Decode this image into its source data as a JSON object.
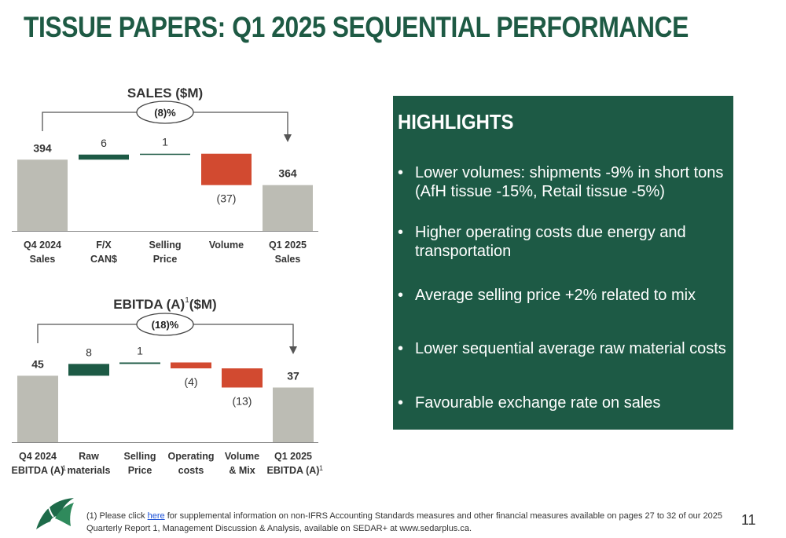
{
  "page": {
    "title": "TISSUE PAPERS: Q1 2025 SEQUENTIAL PERFORMANCE",
    "page_number": "11"
  },
  "colors": {
    "brand_green": "#1e5a44",
    "highlight_bg": "#1d5a45",
    "total_bar": "#bcbcb4",
    "increase_bar": "#1d5a45",
    "decrease_bar": "#d24a30"
  },
  "chart_data": [
    {
      "type": "bar",
      "subtype": "waterfall",
      "title": "SALES ($M)",
      "change_label": "(8)%",
      "categories": [
        [
          "Q4 2024",
          "Sales"
        ],
        [
          "F/X",
          "CAN$"
        ],
        [
          "Selling",
          "Price"
        ],
        [
          "Volume"
        ],
        [
          "Q1 2025",
          "Sales"
        ]
      ],
      "values": [
        394,
        6,
        1,
        -37,
        364
      ],
      "value_labels": [
        "394",
        "6",
        "1",
        "(37)",
        "364"
      ],
      "kinds": [
        "total",
        "delta",
        "delta",
        "delta",
        "total"
      ]
    },
    {
      "type": "bar",
      "subtype": "waterfall",
      "title": "EBITDA (A)",
      "title_sup": "1",
      "title_unit": "($M)",
      "change_label": "(18)%",
      "categories": [
        [
          "Q4 2024",
          "EBITDA (A)"
        ],
        [
          "Raw",
          "materials"
        ],
        [
          "Selling",
          "Price"
        ],
        [
          "Operating",
          "costs"
        ],
        [
          "Volume",
          "& Mix"
        ],
        [
          "Q1 2025",
          "EBITDA (A)"
        ]
      ],
      "category_sups": [
        "1",
        "",
        "",
        "",
        "",
        "1"
      ],
      "values": [
        45,
        8,
        1,
        -4,
        -13,
        37
      ],
      "value_labels": [
        "45",
        "8",
        "1",
        "(4)",
        "(13)",
        "37"
      ],
      "kinds": [
        "total",
        "delta",
        "delta",
        "delta",
        "delta",
        "total"
      ]
    }
  ],
  "highlights": {
    "title": "HIGHLIGHTS",
    "items": [
      "Lower volumes: shipments -9% in short tons (AfH tissue -15%, Retail tissue -5%)",
      "Higher operating costs due energy and transportation",
      "Average selling price +2% related to mix",
      "Lower sequential average raw material costs",
      "Favourable exchange rate on sales"
    ]
  },
  "footnote": {
    "prefix": "(1) Please click ",
    "link_text": "here",
    "suffix": " for supplemental information on non-IFRS Accounting Standards measures and other financial measures available on pages 27 to 32 of our 2025 Quarterly Report 1, Management Discussion & Analysis, available on SEDAR+ at www.sedarplus.ca."
  },
  "logo": {
    "icon": "company-logo-icon"
  }
}
